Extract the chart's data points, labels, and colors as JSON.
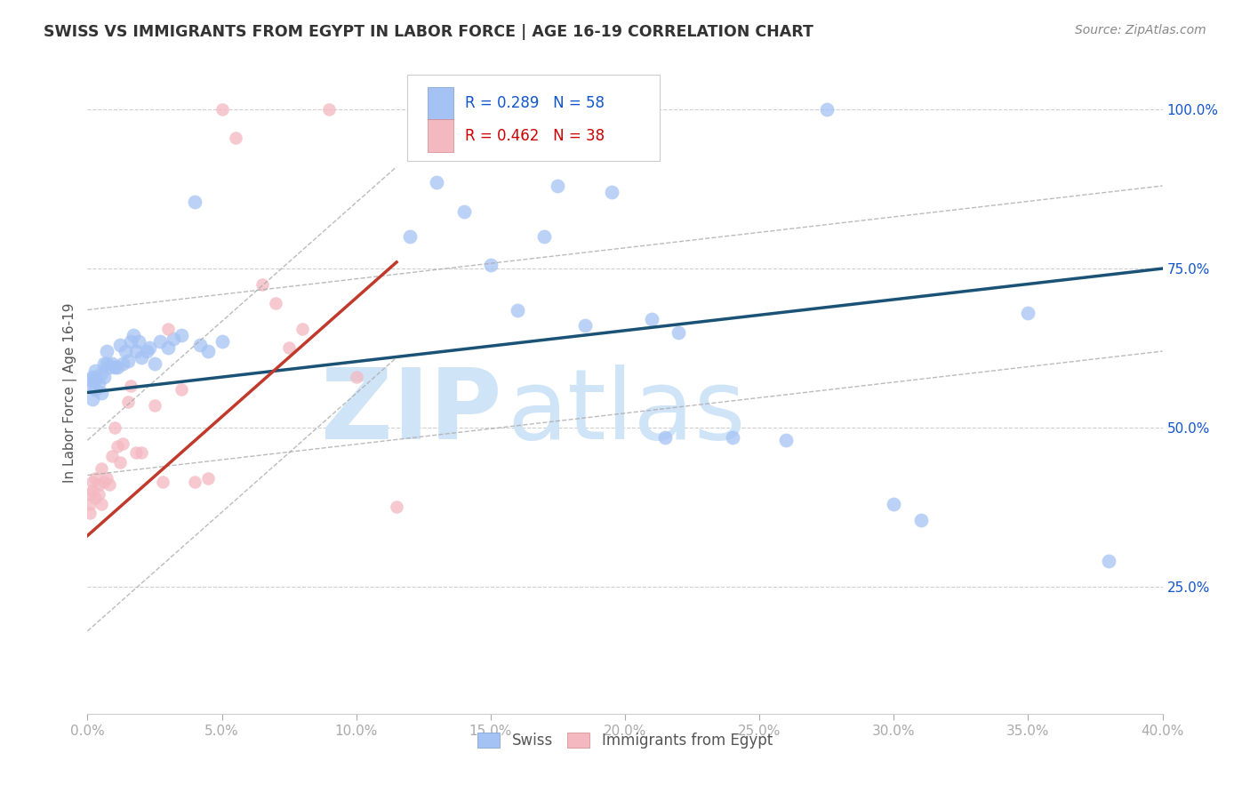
{
  "title": "SWISS VS IMMIGRANTS FROM EGYPT IN LABOR FORCE | AGE 16-19 CORRELATION CHART",
  "source": "Source: ZipAtlas.com",
  "ylabel": "In Labor Force | Age 16-19",
  "swiss_R": 0.289,
  "swiss_N": 58,
  "egypt_R": 0.462,
  "egypt_N": 38,
  "blue_color": "#a4c2f4",
  "pink_color": "#f4b8c1",
  "blue_line_color": "#1a5276",
  "pink_line_color": "#c0392b",
  "blue_text_color": "#1155cc",
  "pink_text_color": "#cc0000",
  "background_color": "#ffffff",
  "grid_color": "#bbbbbb",
  "xlim": [
    0.0,
    0.4
  ],
  "ylim": [
    0.05,
    1.06
  ],
  "xticks": [
    0.0,
    0.05,
    0.1,
    0.15,
    0.2,
    0.25,
    0.3,
    0.35,
    0.4
  ],
  "yticks_right": [
    1.0,
    0.75,
    0.5,
    0.25
  ],
  "swiss_x": [
    0.001,
    0.001,
    0.002,
    0.002,
    0.003,
    0.003,
    0.003,
    0.004,
    0.005,
    0.005,
    0.006,
    0.006,
    0.007,
    0.007,
    0.008,
    0.009,
    0.01,
    0.011,
    0.012,
    0.013,
    0.014,
    0.015,
    0.016,
    0.017,
    0.018,
    0.019,
    0.02,
    0.022,
    0.023,
    0.025,
    0.027,
    0.03,
    0.032,
    0.035,
    0.04,
    0.042,
    0.045,
    0.05,
    0.12,
    0.13,
    0.14,
    0.15,
    0.155,
    0.16,
    0.17,
    0.175,
    0.185,
    0.195,
    0.21,
    0.215,
    0.22,
    0.24,
    0.26,
    0.275,
    0.3,
    0.31,
    0.35,
    0.38
  ],
  "swiss_y": [
    0.565,
    0.575,
    0.545,
    0.58,
    0.56,
    0.575,
    0.59,
    0.57,
    0.555,
    0.585,
    0.58,
    0.6,
    0.6,
    0.62,
    0.595,
    0.6,
    0.595,
    0.595,
    0.63,
    0.6,
    0.62,
    0.605,
    0.635,
    0.645,
    0.62,
    0.635,
    0.61,
    0.62,
    0.625,
    0.6,
    0.635,
    0.625,
    0.64,
    0.645,
    0.855,
    0.63,
    0.62,
    0.635,
    0.8,
    0.885,
    0.84,
    0.755,
    0.95,
    0.685,
    0.8,
    0.88,
    0.66,
    0.87,
    0.67,
    0.485,
    0.65,
    0.485,
    0.48,
    1.0,
    0.38,
    0.355,
    0.68,
    0.29
  ],
  "egypt_x": [
    0.001,
    0.001,
    0.001,
    0.002,
    0.002,
    0.003,
    0.003,
    0.004,
    0.004,
    0.005,
    0.005,
    0.006,
    0.007,
    0.008,
    0.009,
    0.01,
    0.011,
    0.012,
    0.013,
    0.015,
    0.016,
    0.018,
    0.02,
    0.025,
    0.028,
    0.03,
    0.035,
    0.04,
    0.045,
    0.05,
    0.055,
    0.065,
    0.07,
    0.075,
    0.08,
    0.09,
    0.1,
    0.115
  ],
  "egypt_y": [
    0.395,
    0.38,
    0.365,
    0.415,
    0.4,
    0.39,
    0.42,
    0.41,
    0.395,
    0.435,
    0.38,
    0.415,
    0.42,
    0.41,
    0.455,
    0.5,
    0.47,
    0.445,
    0.475,
    0.54,
    0.565,
    0.46,
    0.46,
    0.535,
    0.415,
    0.655,
    0.56,
    0.415,
    0.42,
    1.0,
    0.955,
    0.725,
    0.695,
    0.625,
    0.655,
    1.0,
    0.58,
    0.375
  ],
  "swiss_line_x0": 0.0,
  "swiss_line_x1": 0.4,
  "swiss_line_y0": 0.555,
  "swiss_line_y1": 0.75,
  "egypt_line_x0": 0.0,
  "egypt_line_x1": 0.115,
  "egypt_line_y0": 0.33,
  "egypt_line_y1": 0.76,
  "conf_dash_color": "#aaaaaa",
  "watermark_color": "#d0e4f7"
}
